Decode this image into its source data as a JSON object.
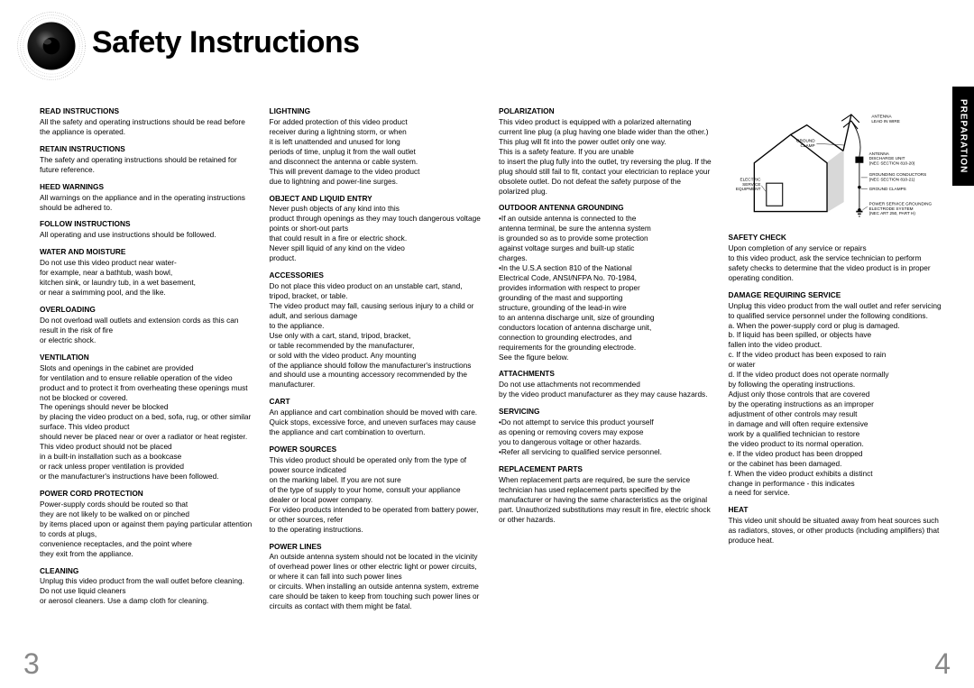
{
  "title": "Safety Instructions",
  "side_tab": "PREPARATION",
  "page_left": "3",
  "page_right": "4",
  "colors": {
    "text": "#000000",
    "background": "#ffffff",
    "page_num": "#888888",
    "tab_bg": "#000000",
    "tab_text": "#ffffff"
  },
  "diagram": {
    "labels": {
      "antenna_lead": "ANTENNA\nLEAD IN WIRE",
      "ground_clamp": "GROUND\nCLAMP",
      "discharge": "ANTENNA\nDISCHARGE UNIT\n(NEC SECTION 810-20)",
      "grounding_cond": "GROUNDING CONDUCTORS\n(NEC SECTION 810-21)",
      "ground_clamps": "GROUND CLAMPS",
      "electrode": "POWER SERVICE GROUNDING\nELECTRODE SYSTEM\n(NEC ART 250, PART H)",
      "service": "ELECTRIC\nSERVICE\nEQUIPMENT"
    }
  },
  "sections": [
    {
      "t": "Read Instructions",
      "b": "All the safety and operating instructions should be read before the appliance is operated."
    },
    {
      "t": "Retain Instructions",
      "b": "The safety and operating instructions should be retained for future reference."
    },
    {
      "t": "Heed Warnings",
      "b": "All warnings on the appliance and in the operating instructions should be adhered to."
    },
    {
      "t": "Follow Instructions",
      "b": "All operating and use instructions should be followed."
    },
    {
      "t": "Water and Moisture",
      "b": "Do not use this video product near water-\nfor example, near a bathtub, wash bowl,\nkitchen sink, or laundry tub, in a wet basement,\nor near a swimming pool, and the like."
    },
    {
      "t": "Overloading",
      "b": "Do not overload wall outlets and extension cords as this can result in the risk of fire\nor electric shock."
    },
    {
      "t": "Ventilation",
      "b": "Slots and openings in the cabinet are provided\nfor ventilation and to ensure reliable operation of the video product and to protect it from overheating these openings must not be blocked or covered.\nThe openings should never be blocked\nby placing the video product on a bed, sofa, rug, or other similar surface. This video product\nshould never be placed near or over a radiator or heat register.\nThis video product should not be placed\nin a built-in installation such as a bookcase\nor rack unless proper ventilation is provided\nor the manufacturer's instructions have been followed."
    },
    {
      "t": "Power Cord Protection",
      "b": "Power-supply cords should be routed so that\nthey are not likely to be walked on or pinched\nby items placed upon or against them paying particular attention to cords at plugs,\nconvenience receptacles, and the point where\nthey exit from the appliance."
    },
    {
      "t": "Cleaning",
      "b": "Unplug this video product from the wall outlet before cleaning. Do not use liquid cleaners\nor aerosol cleaners. Use a damp cloth for cleaning."
    },
    {
      "t": "Lightning",
      "b": "For added protection of this video product\nreceiver during a lightning storm, or when\nit is left unattended and unused for long\nperiods of time, unplug it from the wall outlet\nand disconnect the antenna or cable system.\nThis will prevent damage to the video product\ndue to lightning and power-line surges."
    },
    {
      "t": "Object and Liquid Entry",
      "b": "Never push objects of any kind into this\nproduct through openings as they may touch dangerous voltage points or short-out parts\nthat could result in a fire or electric shock.\nNever spill liquid of any kind on the video\nproduct."
    },
    {
      "t": "Accessories",
      "b": "Do not place this video product on an unstable cart, stand, tripod, bracket, or table.\nThe video product may fall, causing serious injury to a child or adult, and serious damage\nto the appliance.\nUse only with a cart, stand, tripod, bracket,\nor table recommended by the manufacturer,\nor sold with the video product. Any mounting\nof the appliance should follow the manufacturer's instructions and should use a mounting accessory recommended by the manufacturer."
    },
    {
      "t": "Cart",
      "b": "An appliance and cart combination should be moved with care. Quick stops, excessive force, and uneven surfaces may cause the appliance and cart combination to overturn."
    },
    {
      "t": "Power Sources",
      "b": "This video product should be operated only from the type of power source indicated\non the marking label. If you are not sure\nof the type of supply to your home, consult your appliance dealer or local power company.\nFor video products intended to be operated from battery power, or other sources, refer\nto the operating instructions."
    },
    {
      "t": "Power Lines",
      "b": "An outside antenna system should not be located in the vicinity of overhead power lines or other electric light or power circuits,\nor where it can fall into such power lines\nor circuits. When installing an outside antenna system, extreme care should be taken to keep from touching such power lines or circuits as contact with them might be fatal."
    },
    {
      "t": "Polarization",
      "b": "This video product is equipped with a polarized alternating current line plug (a plug having one blade wider than the other.) This plug will fit into the power outlet only one way.\nThis is a safety feature. If you are unable\nto insert the plug fully into the outlet, try reversing the plug. If the plug should still fail to fit, contact your electrician to replace your obsolete outlet. Do not defeat the safety purpose of the polarized plug."
    },
    {
      "t": "Outdoor Antenna Grounding",
      "b": "•If an outside antenna is connected to the\n  antenna terminal, be sure the antenna system\n  is grounded so as to provide some protection\n  against voltage surges and built-up static\n  charges.\n•In the U.S.A section 810 of the National\n  Electrical Code, ANSI/NFPA No. 70-1984,\n  provides information with respect to proper\n  grounding of the mast and supporting\n  structure, grounding of the lead-in wire\n  to an antenna discharge unit, size of grounding\n  conductors location of antenna discharge unit,\n  connection to grounding electrodes, and\n  requirements for the grounding electrode.\n  See the figure below."
    },
    {
      "t": "Attachments",
      "b": "Do not use attachments not recommended\nby the video product manufacturer as they may cause hazards."
    },
    {
      "t": "Servicing",
      "b": "•Do not attempt to service this product yourself\n  as opening or removing covers may expose\n  you to dangerous voltage or other hazards.\n•Refer all servicing to qualified service personnel."
    },
    {
      "t": "Replacement Parts",
      "b": "When replacement parts are required, be sure the service technician has used replacement parts specified by the manufacturer or having the same characteristics as the original part. Unauthorized substitutions may result in fire, electric shock or other hazards."
    },
    {
      "t": "__DIAGRAM__",
      "b": ""
    },
    {
      "t": "Safety Check",
      "b": "Upon completion of any service or repairs\nto this video product, ask the service technician to perform safety checks to determine that the video product is in proper operating condition."
    },
    {
      "t": "Damage Requiring Service",
      "b": "Unplug this video product from the wall outlet and refer servicing to qualified service personnel under the following conditions.\na. When the power-supply cord or plug is damaged.\nb. If liquid has been spilled, or objects have\n    fallen into the video product.\nc. If the video product has been exposed to rain\n    or water\nd. If the video product does not operate normally\n    by following the operating instructions.\n    Adjust only those controls that are covered\n    by the operating instructions as an improper\n    adjustment of other controls may result\n    in damage and will often require extensive\n    work by a qualified technician to restore\n    the video product to its normal operation.\ne. If the video product has been dropped\n    or the cabinet has been damaged.\nf. When the video product exhibits a distinct\n    change in performance - this indicates\n    a need for service."
    },
    {
      "t": "Heat",
      "b": "This video unit should be situated away from heat sources such as radiators, stoves, or other products (including amplifiers) that produce heat."
    }
  ]
}
